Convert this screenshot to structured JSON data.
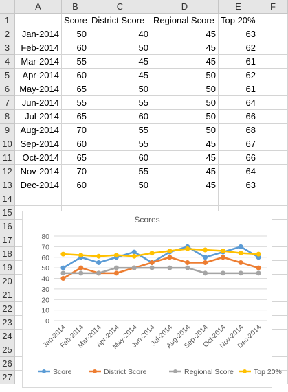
{
  "columns": [
    "A",
    "B",
    "C",
    "D",
    "E",
    "F"
  ],
  "rows": [
    "1",
    "2",
    "3",
    "4",
    "5",
    "6",
    "7",
    "8",
    "9",
    "10",
    "11",
    "12",
    "13",
    "14",
    "15",
    "16",
    "17",
    "18",
    "19",
    "20",
    "21",
    "22",
    "23",
    "24",
    "25",
    "26",
    "27"
  ],
  "table": {
    "headers": [
      "",
      "Score",
      "District Score",
      "Regional Score",
      "Top 20%"
    ],
    "rows": [
      [
        "Jan-2014",
        "50",
        "40",
        "45",
        "63"
      ],
      [
        "Feb-2014",
        "60",
        "50",
        "45",
        "62"
      ],
      [
        "Mar-2014",
        "55",
        "45",
        "45",
        "61"
      ],
      [
        "Apr-2014",
        "60",
        "45",
        "50",
        "62"
      ],
      [
        "May-2014",
        "65",
        "50",
        "50",
        "61"
      ],
      [
        "Jun-2014",
        "55",
        "55",
        "50",
        "64"
      ],
      [
        "Jul-2014",
        "65",
        "60",
        "50",
        "66"
      ],
      [
        "Aug-2014",
        "70",
        "55",
        "50",
        "68"
      ],
      [
        "Sep-2014",
        "60",
        "55",
        "45",
        "67"
      ],
      [
        "Oct-2014",
        "65",
        "60",
        "45",
        "66"
      ],
      [
        "Nov-2014",
        "70",
        "55",
        "45",
        "64"
      ],
      [
        "Dec-2014",
        "60",
        "50",
        "45",
        "63"
      ]
    ]
  },
  "chart_data": {
    "type": "line",
    "title": "Scores",
    "categories": [
      "Jan-2014",
      "Feb-2014",
      "Mar-2014",
      "Apr-2014",
      "May-2014",
      "Jun-2014",
      "Jul-2014",
      "Aug-2014",
      "Sep-2014",
      "Oct-2014",
      "Nov-2014",
      "Dec-2014"
    ],
    "ylim": [
      0,
      80
    ],
    "yticks": [
      "0",
      "10",
      "20",
      "30",
      "40",
      "50",
      "60",
      "70",
      "80"
    ],
    "grid": true,
    "legend_position": "bottom",
    "series": [
      {
        "name": "Score",
        "color": "#5b9bd5",
        "values": [
          50,
          60,
          55,
          60,
          65,
          55,
          65,
          70,
          60,
          65,
          70,
          60
        ]
      },
      {
        "name": "District Score",
        "color": "#ed7d31",
        "values": [
          40,
          50,
          45,
          45,
          50,
          55,
          60,
          55,
          55,
          60,
          55,
          50
        ]
      },
      {
        "name": "Regional Score",
        "color": "#a5a5a5",
        "values": [
          45,
          45,
          45,
          50,
          50,
          50,
          50,
          50,
          45,
          45,
          45,
          45
        ]
      },
      {
        "name": "Top 20%",
        "color": "#ffc000",
        "values": [
          63,
          62,
          61,
          62,
          61,
          64,
          66,
          68,
          67,
          66,
          64,
          63
        ]
      }
    ]
  }
}
